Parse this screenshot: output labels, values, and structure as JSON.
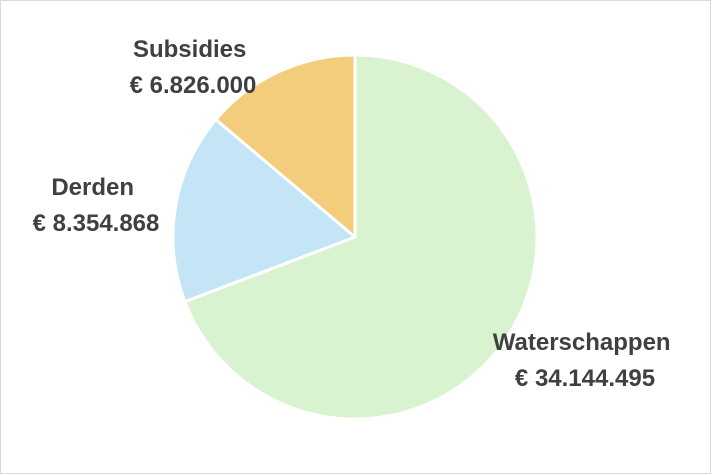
{
  "chart_data": {
    "type": "pie",
    "title": "",
    "categories": [
      "Waterschappen",
      "Derden",
      "Subsidies"
    ],
    "values": [
      34144495,
      8354868,
      6826000
    ],
    "value_labels": [
      "€ 34.144.495",
      "€ 8.354.868",
      "€ 6.826.000"
    ],
    "colors": [
      "#d9f2d0",
      "#c3e5f5",
      "#f3cc7c"
    ],
    "slice_border_color": "#ffffff",
    "start_angle_deg": 0,
    "direction": "clockwise",
    "legend": "none",
    "data_labels": "outside"
  }
}
